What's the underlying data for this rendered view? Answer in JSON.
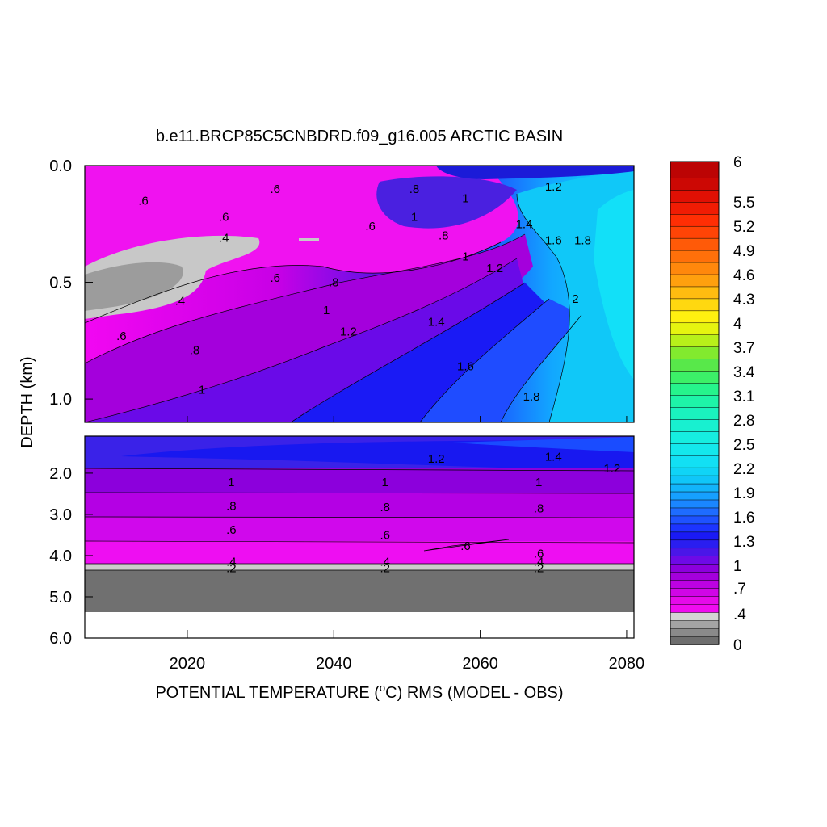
{
  "chart_data": {
    "type": "heatmap",
    "title": "b.e11.BRCP85C5CNBDRD.f09_g16.005 ARCTIC BASIN",
    "xlabel": "POTENTIAL TEMPERATURE (°C) RMS (MODEL - OBS)",
    "xlabel_parts": {
      "before": "POTENTIAL TEMPERATURE (",
      "sup": "o",
      "after": "C) RMS (MODEL - OBS)"
    },
    "ylabel": "DEPTH (km)",
    "xlim": [
      2006,
      2081
    ],
    "x_ticks": [
      2020,
      2040,
      2060,
      2080
    ],
    "upper_panel": {
      "ylim": [
        0.0,
        1.1
      ],
      "y_ticks": [
        0.0,
        0.5,
        1.0
      ],
      "y_tick_labels": [
        "0.0",
        "0.5",
        "1.0"
      ]
    },
    "lower_panel": {
      "ylim": [
        1.1,
        6.0
      ],
      "y_ticks": [
        2.0,
        3.0,
        4.0,
        5.0,
        6.0
      ],
      "y_tick_labels": [
        "2.0",
        "3.0",
        "4.0",
        "5.0",
        "6.0"
      ],
      "bottom_depth": 5.35
    },
    "colorbar": {
      "range": [
        0,
        6
      ],
      "tick_values": [
        6,
        5.5,
        5.2,
        4.9,
        4.6,
        4.3,
        4,
        3.7,
        3.4,
        3.1,
        2.8,
        2.5,
        2.2,
        1.9,
        1.6,
        1.3,
        1,
        0.7,
        0.4,
        0
      ],
      "tick_labels": [
        "6",
        "5.5",
        "5.2",
        "4.9",
        "4.6",
        "4.3",
        "4",
        "3.7",
        "3.4",
        "3.1",
        "2.8",
        "2.5",
        "2.2",
        "1.9",
        "1.6",
        "1.3",
        "1",
        ".7",
        ".4",
        "0"
      ]
    },
    "contour_labels": [
      {
        "text": ".6",
        "year": 2014,
        "depth": 0.15
      },
      {
        "text": ".6",
        "year": 2032,
        "depth": 0.1
      },
      {
        "text": ".6",
        "year": 2025,
        "depth": 0.22
      },
      {
        "text": ".4",
        "year": 2025,
        "depth": 0.31
      },
      {
        "text": ".6",
        "year": 2045,
        "depth": 0.26
      },
      {
        "text": ".8",
        "year": 2051,
        "depth": 0.1
      },
      {
        "text": "1",
        "year": 2058,
        "depth": 0.14
      },
      {
        "text": "1.2",
        "year": 2070,
        "depth": 0.09
      },
      {
        "text": "1",
        "year": 2051,
        "depth": 0.22
      },
      {
        "text": ".8",
        "year": 2055,
        "depth": 0.3
      },
      {
        "text": "1.4",
        "year": 2066,
        "depth": 0.25
      },
      {
        "text": "1.6",
        "year": 2070,
        "depth": 0.32
      },
      {
        "text": "1.8",
        "year": 2074,
        "depth": 0.32
      },
      {
        "text": "1",
        "year": 2058,
        "depth": 0.39
      },
      {
        "text": "1.2",
        "year": 2062,
        "depth": 0.44
      },
      {
        "text": ".6",
        "year": 2032,
        "depth": 0.48
      },
      {
        "text": ".8",
        "year": 2040,
        "depth": 0.5
      },
      {
        "text": ".4",
        "year": 2019,
        "depth": 0.58
      },
      {
        "text": "2",
        "year": 2073,
        "depth": 0.57
      },
      {
        "text": "1",
        "year": 2039,
        "depth": 0.62
      },
      {
        "text": "1.4",
        "year": 2054,
        "depth": 0.67
      },
      {
        "text": "1.2",
        "year": 2042,
        "depth": 0.71
      },
      {
        "text": ".6",
        "year": 2011,
        "depth": 0.73
      },
      {
        "text": ".8",
        "year": 2021,
        "depth": 0.79
      },
      {
        "text": "1.6",
        "year": 2058,
        "depth": 0.86
      },
      {
        "text": "1.8",
        "year": 2067,
        "depth": 0.99
      },
      {
        "text": "1",
        "year": 2022,
        "depth": 0.96
      },
      {
        "text": "1.2",
        "year": 2054,
        "depth": 1.65
      },
      {
        "text": "1.4",
        "year": 2070,
        "depth": 1.6
      },
      {
        "text": "1.2",
        "year": 2078,
        "depth": 1.88
      },
      {
        "text": "1",
        "year": 2026,
        "depth": 2.22
      },
      {
        "text": "1",
        "year": 2047,
        "depth": 2.22
      },
      {
        "text": "1",
        "year": 2068,
        "depth": 2.22
      },
      {
        "text": ".8",
        "year": 2026,
        "depth": 2.8
      },
      {
        "text": ".8",
        "year": 2047,
        "depth": 2.82
      },
      {
        "text": ".8",
        "year": 2068,
        "depth": 2.85
      },
      {
        "text": ".6",
        "year": 2026,
        "depth": 3.37
      },
      {
        "text": ".6",
        "year": 2047,
        "depth": 3.5
      },
      {
        "text": ".6",
        "year": 2058,
        "depth": 3.77
      },
      {
        "text": ".6",
        "year": 2068,
        "depth": 3.95
      },
      {
        "text": ".4",
        "year": 2026,
        "depth": 4.15
      },
      {
        "text": ".4",
        "year": 2047,
        "depth": 4.15
      },
      {
        "text": ".4",
        "year": 2068,
        "depth": 4.15
      },
      {
        "text": ".2",
        "year": 2026,
        "depth": 4.3
      },
      {
        "text": ".2",
        "year": 2047,
        "depth": 4.3
      },
      {
        "text": ".2",
        "year": 2068,
        "depth": 4.3
      }
    ]
  }
}
